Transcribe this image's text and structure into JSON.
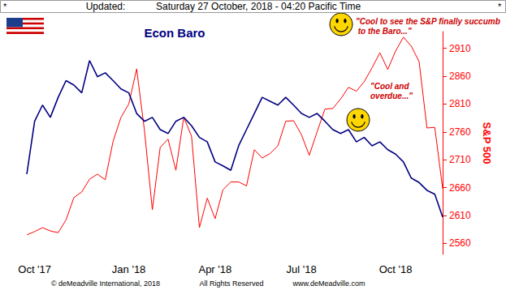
{
  "header": {
    "left_mark": "*",
    "label": "Updated:",
    "timestamp": "Saturday 27 October, 2018 - 04:20 Pacific Time",
    "right_mark": "*"
  },
  "footer": {
    "copyright": "© deMeadville International, 2018",
    "rights": "All Rights Reserved",
    "website": "www.deMeadville.com"
  },
  "chart_data": {
    "type": "line",
    "title": "Econ Baro",
    "y_label": "S&P 500",
    "categories": [
      null,
      "Oct '17",
      null,
      null,
      null,
      null,
      null,
      null,
      null,
      null,
      null,
      null,
      null,
      "Jan '18",
      null,
      null,
      null,
      null,
      null,
      null,
      null,
      null,
      null,
      null,
      "Apr '18",
      null,
      null,
      null,
      null,
      null,
      null,
      null,
      null,
      null,
      null,
      "Jul '18",
      null,
      null,
      null,
      null,
      null,
      null,
      null,
      null,
      null,
      null,
      null,
      "Oct '18",
      null,
      null,
      null,
      null,
      null,
      null
    ],
    "series": [
      {
        "color": "#000080",
        "values": [
          2684,
          2779,
          2808,
          2786,
          2822,
          2852,
          2844,
          2830,
          2888,
          2859,
          2866,
          2852,
          2837,
          2830,
          2793,
          2779,
          2786,
          2764,
          2757,
          2779,
          2786,
          2771,
          2750,
          2742,
          2706,
          2699,
          2691,
          2735,
          2764,
          2793,
          2822,
          2815,
          2808,
          2822,
          2808,
          2793,
          2786,
          2793,
          2779,
          2764,
          2757,
          2764,
          2742,
          2750,
          2735,
          2742,
          2728,
          2720,
          2706,
          2677,
          2669,
          2655,
          2648,
          2607
        ]
      },
      {
        "color": "#ff0000",
        "values": [
          2575,
          2581,
          2588,
          2582,
          2579,
          2602,
          2642,
          2652,
          2675,
          2684,
          2674,
          2743,
          2786,
          2810,
          2873,
          2762,
          2620,
          2732,
          2747,
          2691,
          2786,
          2752,
          2588,
          2641,
          2604,
          2656,
          2670,
          2670,
          2663,
          2728,
          2713,
          2721,
          2735,
          2779,
          2780,
          2755,
          2718,
          2760,
          2801,
          2802,
          2819,
          2840,
          2833,
          2850,
          2875,
          2902,
          2872,
          2905,
          2930,
          2914,
          2886,
          2767,
          2768,
          2658
        ]
      }
    ],
    "ylim": [
      2540,
      2940
    ],
    "yticks": [
      2560,
      2610,
      2660,
      2710,
      2760,
      2810,
      2860,
      2910
    ],
    "grid": false,
    "annotations": [
      {
        "text": "\"Cool to see the S&P finally succumb to the Baro...\"",
        "color": "#cc0000"
      },
      {
        "text": "\"Cool and\noverdue...\"",
        "color": "#cc0000"
      }
    ]
  }
}
